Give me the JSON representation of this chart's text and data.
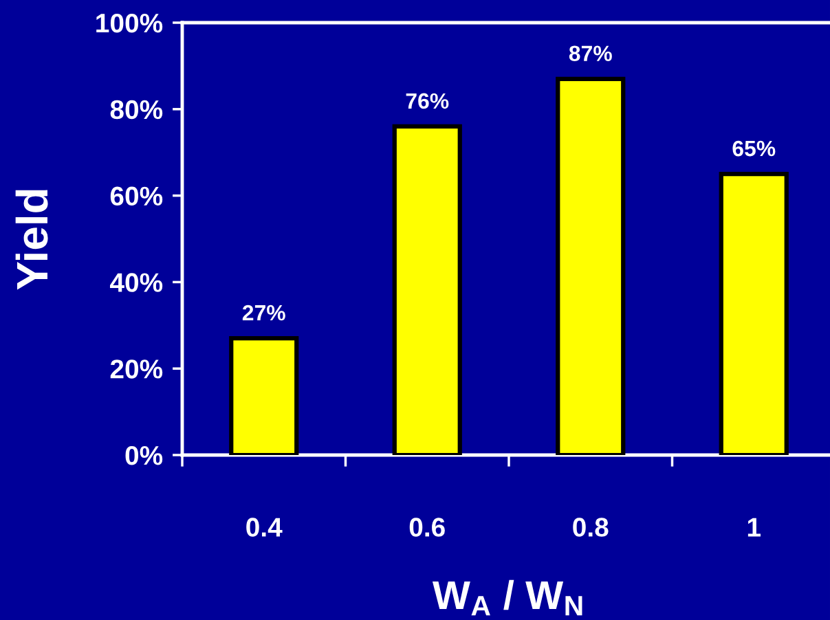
{
  "chart_data": {
    "type": "bar",
    "xlabel": "W$_{A}$ / W$_{N}$",
    "ylabel": "Yield",
    "categories": [
      "0.4",
      "0.6",
      "0.8",
      "1"
    ],
    "values": [
      27,
      76,
      87,
      65
    ],
    "color": "#ffff00",
    "value_labels": [
      "27%",
      "76%",
      "87%",
      "65%"
    ],
    "ylim": [
      0,
      100
    ],
    "yticks": [
      {
        "value": 0,
        "label": "0%"
      },
      {
        "value": 20,
        "label": "20%"
      },
      {
        "value": 40,
        "label": "40%"
      },
      {
        "value": 60,
        "label": "60%"
      },
      {
        "value": 80,
        "label": "80%"
      },
      {
        "value": 100,
        "label": "100%"
      }
    ],
    "grid": false,
    "legend": false
  }
}
